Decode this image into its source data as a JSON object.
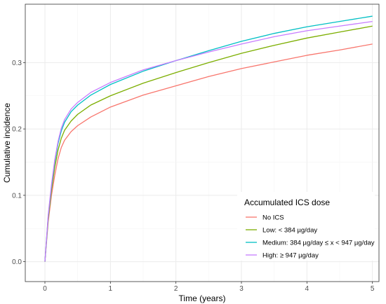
{
  "chart_data": {
    "type": "line",
    "title": "",
    "xlabel": "Time (years)",
    "ylabel": "Cumulative incidence",
    "xlim": [
      -0.3,
      5.1
    ],
    "ylim": [
      -0.03,
      0.388
    ],
    "x_ticks": [
      0,
      1,
      2,
      3,
      4,
      5
    ],
    "x_tick_labels": [
      "0",
      "1",
      "2",
      "3",
      "4",
      "5"
    ],
    "y_ticks": [
      0.0,
      0.1,
      0.2,
      0.3
    ],
    "y_tick_labels": [
      "0.0",
      "0.1",
      "0.2",
      "0.3"
    ],
    "grid": true,
    "legend": {
      "title": "Accumulated ICS dose",
      "position": "bottom-right"
    },
    "series": [
      {
        "name": "No ICS",
        "color": "#F8766D",
        "points": [
          [
            0,
            0
          ],
          [
            0.05,
            0.06
          ],
          [
            0.1,
            0.1
          ],
          [
            0.15,
            0.13
          ],
          [
            0.2,
            0.155
          ],
          [
            0.25,
            0.172
          ],
          [
            0.3,
            0.183
          ],
          [
            0.4,
            0.196
          ],
          [
            0.5,
            0.205
          ],
          [
            0.7,
            0.218
          ],
          [
            1,
            0.233
          ],
          [
            1.5,
            0.251
          ],
          [
            2,
            0.265
          ],
          [
            2.5,
            0.279
          ],
          [
            3,
            0.291
          ],
          [
            3.5,
            0.301
          ],
          [
            4,
            0.311
          ],
          [
            4.5,
            0.319
          ],
          [
            5,
            0.328
          ]
        ]
      },
      {
        "name": "Low: < 384 µg/day",
        "color": "#7CAE00",
        "points": [
          [
            0,
            0
          ],
          [
            0.05,
            0.065
          ],
          [
            0.1,
            0.108
          ],
          [
            0.15,
            0.142
          ],
          [
            0.2,
            0.168
          ],
          [
            0.25,
            0.186
          ],
          [
            0.3,
            0.198
          ],
          [
            0.4,
            0.212
          ],
          [
            0.5,
            0.222
          ],
          [
            0.7,
            0.236
          ],
          [
            1,
            0.25
          ],
          [
            1.5,
            0.269
          ],
          [
            2,
            0.285
          ],
          [
            2.5,
            0.3
          ],
          [
            3,
            0.314
          ],
          [
            3.5,
            0.326
          ],
          [
            4,
            0.337
          ],
          [
            4.5,
            0.346
          ],
          [
            5,
            0.355
          ]
        ]
      },
      {
        "name": "Medium: 384 µg/day ≤ x < 947 µg/day",
        "color": "#00BFC4",
        "points": [
          [
            0,
            0
          ],
          [
            0.05,
            0.068
          ],
          [
            0.1,
            0.113
          ],
          [
            0.15,
            0.15
          ],
          [
            0.2,
            0.178
          ],
          [
            0.25,
            0.197
          ],
          [
            0.3,
            0.21
          ],
          [
            0.4,
            0.226
          ],
          [
            0.5,
            0.236
          ],
          [
            0.7,
            0.251
          ],
          [
            1,
            0.267
          ],
          [
            1.5,
            0.287
          ],
          [
            2,
            0.303
          ],
          [
            2.5,
            0.318
          ],
          [
            3,
            0.332
          ],
          [
            3.5,
            0.344
          ],
          [
            4,
            0.354
          ],
          [
            4.5,
            0.362
          ],
          [
            5,
            0.37
          ]
        ]
      },
      {
        "name": "High: ≥ 947 µg/day",
        "color": "#C77CFF",
        "points": [
          [
            0,
            0
          ],
          [
            0.05,
            0.07
          ],
          [
            0.1,
            0.116
          ],
          [
            0.15,
            0.153
          ],
          [
            0.2,
            0.181
          ],
          [
            0.25,
            0.201
          ],
          [
            0.3,
            0.214
          ],
          [
            0.4,
            0.23
          ],
          [
            0.5,
            0.24
          ],
          [
            0.7,
            0.255
          ],
          [
            1,
            0.27
          ],
          [
            1.5,
            0.289
          ],
          [
            2,
            0.303
          ],
          [
            2.5,
            0.316
          ],
          [
            3,
            0.328
          ],
          [
            3.5,
            0.339
          ],
          [
            4,
            0.348
          ],
          [
            4.5,
            0.355
          ],
          [
            5,
            0.362
          ]
        ]
      }
    ]
  }
}
